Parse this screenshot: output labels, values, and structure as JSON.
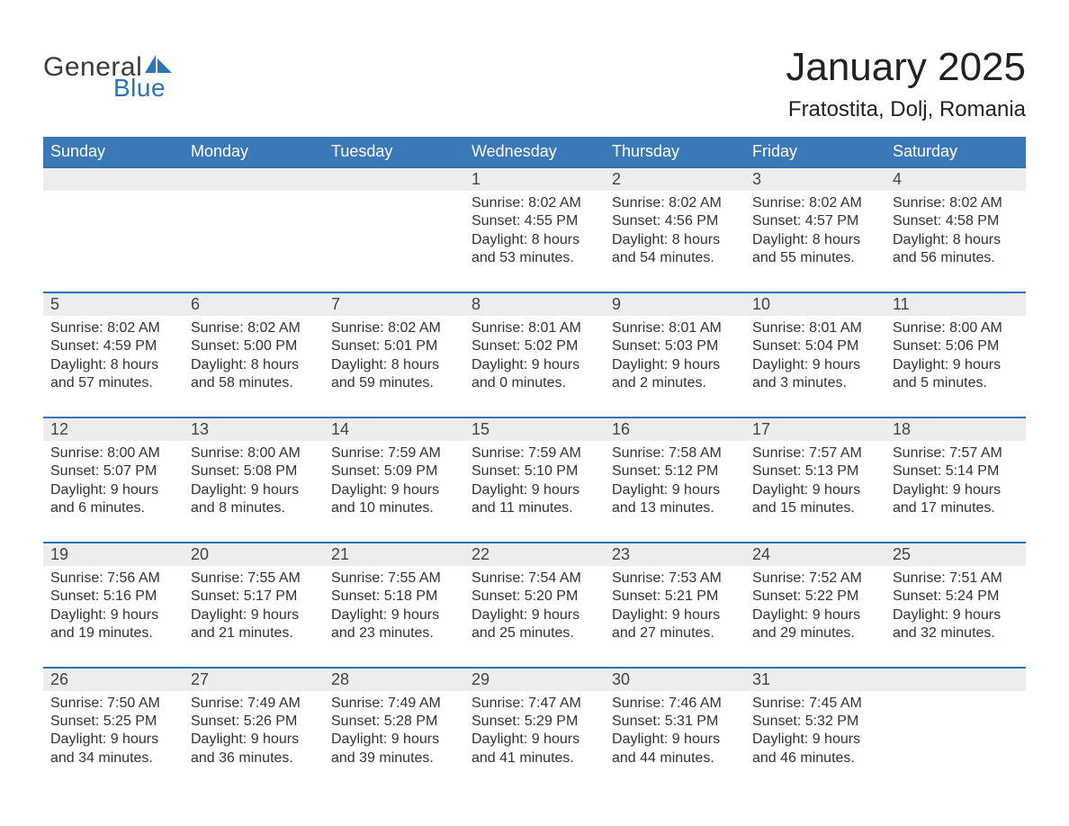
{
  "logo": {
    "general": "General",
    "blue": "Blue"
  },
  "title": "January 2025",
  "location": "Fratostita, Dolj, Romania",
  "colors": {
    "header_bg": "#3a78b7",
    "header_text": "#ffffff",
    "week_divider": "#2c73b8",
    "daynum_bg": "#ededed",
    "text": "#333333",
    "logo_blue": "#2c73b8",
    "logo_gray": "#3a3a3a",
    "background": "#ffffff"
  },
  "day_names": [
    "Sunday",
    "Monday",
    "Tuesday",
    "Wednesday",
    "Thursday",
    "Friday",
    "Saturday"
  ],
  "weeks": [
    {
      "days": [
        {
          "num": "",
          "lines": [
            "",
            "",
            "",
            ""
          ]
        },
        {
          "num": "",
          "lines": [
            "",
            "",
            "",
            ""
          ]
        },
        {
          "num": "",
          "lines": [
            "",
            "",
            "",
            ""
          ]
        },
        {
          "num": "1",
          "lines": [
            "Sunrise: 8:02 AM",
            "Sunset: 4:55 PM",
            "Daylight: 8 hours",
            "and 53 minutes."
          ]
        },
        {
          "num": "2",
          "lines": [
            "Sunrise: 8:02 AM",
            "Sunset: 4:56 PM",
            "Daylight: 8 hours",
            "and 54 minutes."
          ]
        },
        {
          "num": "3",
          "lines": [
            "Sunrise: 8:02 AM",
            "Sunset: 4:57 PM",
            "Daylight: 8 hours",
            "and 55 minutes."
          ]
        },
        {
          "num": "4",
          "lines": [
            "Sunrise: 8:02 AM",
            "Sunset: 4:58 PM",
            "Daylight: 8 hours",
            "and 56 minutes."
          ]
        }
      ]
    },
    {
      "days": [
        {
          "num": "5",
          "lines": [
            "Sunrise: 8:02 AM",
            "Sunset: 4:59 PM",
            "Daylight: 8 hours",
            "and 57 minutes."
          ]
        },
        {
          "num": "6",
          "lines": [
            "Sunrise: 8:02 AM",
            "Sunset: 5:00 PM",
            "Daylight: 8 hours",
            "and 58 minutes."
          ]
        },
        {
          "num": "7",
          "lines": [
            "Sunrise: 8:02 AM",
            "Sunset: 5:01 PM",
            "Daylight: 8 hours",
            "and 59 minutes."
          ]
        },
        {
          "num": "8",
          "lines": [
            "Sunrise: 8:01 AM",
            "Sunset: 5:02 PM",
            "Daylight: 9 hours",
            "and 0 minutes."
          ]
        },
        {
          "num": "9",
          "lines": [
            "Sunrise: 8:01 AM",
            "Sunset: 5:03 PM",
            "Daylight: 9 hours",
            "and 2 minutes."
          ]
        },
        {
          "num": "10",
          "lines": [
            "Sunrise: 8:01 AM",
            "Sunset: 5:04 PM",
            "Daylight: 9 hours",
            "and 3 minutes."
          ]
        },
        {
          "num": "11",
          "lines": [
            "Sunrise: 8:00 AM",
            "Sunset: 5:06 PM",
            "Daylight: 9 hours",
            "and 5 minutes."
          ]
        }
      ]
    },
    {
      "days": [
        {
          "num": "12",
          "lines": [
            "Sunrise: 8:00 AM",
            "Sunset: 5:07 PM",
            "Daylight: 9 hours",
            "and 6 minutes."
          ]
        },
        {
          "num": "13",
          "lines": [
            "Sunrise: 8:00 AM",
            "Sunset: 5:08 PM",
            "Daylight: 9 hours",
            "and 8 minutes."
          ]
        },
        {
          "num": "14",
          "lines": [
            "Sunrise: 7:59 AM",
            "Sunset: 5:09 PM",
            "Daylight: 9 hours",
            "and 10 minutes."
          ]
        },
        {
          "num": "15",
          "lines": [
            "Sunrise: 7:59 AM",
            "Sunset: 5:10 PM",
            "Daylight: 9 hours",
            "and 11 minutes."
          ]
        },
        {
          "num": "16",
          "lines": [
            "Sunrise: 7:58 AM",
            "Sunset: 5:12 PM",
            "Daylight: 9 hours",
            "and 13 minutes."
          ]
        },
        {
          "num": "17",
          "lines": [
            "Sunrise: 7:57 AM",
            "Sunset: 5:13 PM",
            "Daylight: 9 hours",
            "and 15 minutes."
          ]
        },
        {
          "num": "18",
          "lines": [
            "Sunrise: 7:57 AM",
            "Sunset: 5:14 PM",
            "Daylight: 9 hours",
            "and 17 minutes."
          ]
        }
      ]
    },
    {
      "days": [
        {
          "num": "19",
          "lines": [
            "Sunrise: 7:56 AM",
            "Sunset: 5:16 PM",
            "Daylight: 9 hours",
            "and 19 minutes."
          ]
        },
        {
          "num": "20",
          "lines": [
            "Sunrise: 7:55 AM",
            "Sunset: 5:17 PM",
            "Daylight: 9 hours",
            "and 21 minutes."
          ]
        },
        {
          "num": "21",
          "lines": [
            "Sunrise: 7:55 AM",
            "Sunset: 5:18 PM",
            "Daylight: 9 hours",
            "and 23 minutes."
          ]
        },
        {
          "num": "22",
          "lines": [
            "Sunrise: 7:54 AM",
            "Sunset: 5:20 PM",
            "Daylight: 9 hours",
            "and 25 minutes."
          ]
        },
        {
          "num": "23",
          "lines": [
            "Sunrise: 7:53 AM",
            "Sunset: 5:21 PM",
            "Daylight: 9 hours",
            "and 27 minutes."
          ]
        },
        {
          "num": "24",
          "lines": [
            "Sunrise: 7:52 AM",
            "Sunset: 5:22 PM",
            "Daylight: 9 hours",
            "and 29 minutes."
          ]
        },
        {
          "num": "25",
          "lines": [
            "Sunrise: 7:51 AM",
            "Sunset: 5:24 PM",
            "Daylight: 9 hours",
            "and 32 minutes."
          ]
        }
      ]
    },
    {
      "days": [
        {
          "num": "26",
          "lines": [
            "Sunrise: 7:50 AM",
            "Sunset: 5:25 PM",
            "Daylight: 9 hours",
            "and 34 minutes."
          ]
        },
        {
          "num": "27",
          "lines": [
            "Sunrise: 7:49 AM",
            "Sunset: 5:26 PM",
            "Daylight: 9 hours",
            "and 36 minutes."
          ]
        },
        {
          "num": "28",
          "lines": [
            "Sunrise: 7:49 AM",
            "Sunset: 5:28 PM",
            "Daylight: 9 hours",
            "and 39 minutes."
          ]
        },
        {
          "num": "29",
          "lines": [
            "Sunrise: 7:47 AM",
            "Sunset: 5:29 PM",
            "Daylight: 9 hours",
            "and 41 minutes."
          ]
        },
        {
          "num": "30",
          "lines": [
            "Sunrise: 7:46 AM",
            "Sunset: 5:31 PM",
            "Daylight: 9 hours",
            "and 44 minutes."
          ]
        },
        {
          "num": "31",
          "lines": [
            "Sunrise: 7:45 AM",
            "Sunset: 5:32 PM",
            "Daylight: 9 hours",
            "and 46 minutes."
          ]
        },
        {
          "num": "",
          "lines": [
            "",
            "",
            "",
            ""
          ]
        }
      ]
    }
  ]
}
